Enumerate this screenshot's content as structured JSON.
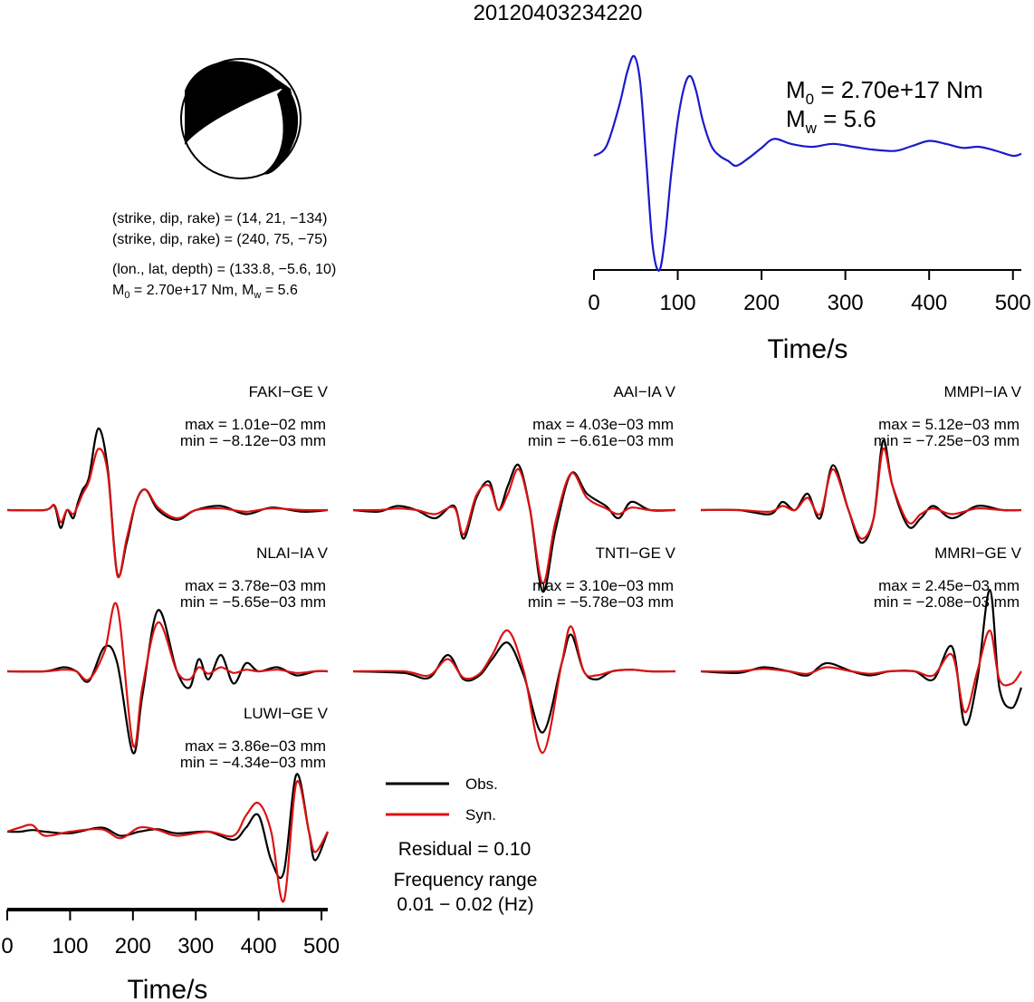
{
  "title": "20120403234220",
  "mechanism": {
    "line1": "(strike, dip, rake) = (14, 21, −134)",
    "line2": "(strike, dip, rake) = (240, 75, −75)",
    "line3": "(lon., lat, depth) = (133.8, −5.6, 10)",
    "m0_prefix": "M",
    "m0_sub": "0",
    "m0_text": " = 2.70e+17 Nm, M",
    "mw_sub": "w",
    "mw_text": " = 5.6"
  },
  "stf": {
    "m0_label": "M",
    "m0_sub": "0",
    "m0_value": " = 2.70e+17 Nm",
    "mw_label": "M",
    "mw_sub": "w",
    "mw_value": " = 5.6",
    "xlabel": "Time/s",
    "ticks": [
      "0",
      "100",
      "200",
      "300",
      "400",
      "500"
    ]
  },
  "waveform_axis": {
    "xlabel": "Time/s",
    "ticks": [
      "0",
      "100",
      "200",
      "300",
      "400",
      "500"
    ]
  },
  "legend": {
    "obs": "Obs.",
    "syn": "Syn.",
    "residual": "Residual = 0.10",
    "freq_label": "Frequency range",
    "freq_value": "0.01 − 0.02 (Hz)",
    "obs_color": "#000000",
    "syn_color": "#dd1111"
  },
  "stations": [
    {
      "name": "FAKI−GE V",
      "max": "max = 1.01e−02 mm",
      "min": "min = −8.12e−03 mm"
    },
    {
      "name": "AAI−IA V",
      "max": "max = 4.03e−03 mm",
      "min": "min = −6.61e−03 mm"
    },
    {
      "name": "MMPI−IA V",
      "max": "max = 5.12e−03 mm",
      "min": "min = −7.25e−03 mm"
    },
    {
      "name": "NLAI−IA V",
      "max": "max = 3.78e−03 mm",
      "min": "min = −5.65e−03 mm"
    },
    {
      "name": "TNTI−GE V",
      "max": "max = 3.10e−03 mm",
      "min": "min = −5.78e−03 mm"
    },
    {
      "name": "MMRI−GE V",
      "max": "max = 2.45e−03 mm",
      "min": "min = −2.08e−03 mm"
    },
    {
      "name": "LUWI−GE V",
      "max": "max = 3.86e−03 mm",
      "min": "min = −4.34e−03 mm"
    }
  ],
  "chart_data": [
    {
      "type": "line",
      "title": "",
      "xlabel": "Time/s",
      "ylabel": "",
      "xlim": [
        0,
        510
      ],
      "series": [
        {
          "color": "#1a1acc",
          "x": [
            0,
            15,
            30,
            40,
            48,
            55,
            62,
            70,
            78,
            85,
            92,
            100,
            108,
            115,
            122,
            130,
            140,
            150,
            160,
            170,
            185,
            200,
            215,
            235,
            260,
            285,
            310,
            335,
            360,
            380,
            400,
            420,
            440,
            460,
            480,
            500,
            510
          ],
          "y": [
            0.0,
            0.1,
            0.5,
            0.85,
            1.0,
            0.75,
            0.0,
            -0.9,
            -1.15,
            -0.8,
            -0.2,
            0.35,
            0.7,
            0.8,
            0.65,
            0.35,
            0.1,
            0.0,
            -0.05,
            -0.1,
            -0.02,
            0.08,
            0.17,
            0.12,
            0.09,
            0.12,
            0.09,
            0.06,
            0.05,
            0.1,
            0.15,
            0.12,
            0.08,
            0.09,
            0.05,
            0.0,
            0.02
          ]
        }
      ]
    },
    {
      "type": "line",
      "title": "FAKI−GE V",
      "xlim": [
        0,
        510
      ],
      "series": [
        {
          "name": "Obs.",
          "x": [
            0,
            60,
            75,
            85,
            95,
            105,
            112,
            120,
            130,
            145,
            160,
            175,
            190,
            205,
            220,
            240,
            270,
            300,
            340,
            380,
            420,
            470,
            510
          ],
          "y": [
            0.0,
            0.0,
            0.05,
            -0.22,
            0.0,
            -0.1,
            0.08,
            0.25,
            0.4,
            1.0,
            0.5,
            -0.78,
            -0.4,
            0.1,
            0.25,
            0.0,
            -0.12,
            0.0,
            0.05,
            -0.05,
            0.03,
            -0.02,
            0.0
          ]
        },
        {
          "name": "Syn.",
          "x": [
            0,
            60,
            75,
            85,
            95,
            105,
            112,
            120,
            130,
            145,
            160,
            175,
            190,
            205,
            220,
            240,
            270,
            300,
            340,
            380,
            420,
            470,
            510
          ],
          "y": [
            0.0,
            0.0,
            0.06,
            -0.15,
            0.0,
            -0.05,
            0.05,
            0.2,
            0.35,
            0.75,
            0.45,
            -0.8,
            -0.35,
            0.1,
            0.25,
            0.03,
            -0.1,
            0.0,
            0.02,
            -0.02,
            0.02,
            0.0,
            0.0
          ]
        }
      ]
    },
    {
      "type": "line",
      "title": "AAI−IA V",
      "xlim": [
        0,
        510
      ],
      "series": [
        {
          "name": "Obs.",
          "x": [
            0,
            40,
            70,
            100,
            130,
            160,
            175,
            195,
            215,
            230,
            245,
            262,
            280,
            300,
            320,
            345,
            370,
            400,
            420,
            440,
            470,
            510
          ],
          "y": [
            0.0,
            -0.02,
            0.05,
            0.0,
            -0.1,
            0.05,
            -0.35,
            0.15,
            0.35,
            0.0,
            0.3,
            0.55,
            0.0,
            -1.0,
            -0.25,
            0.45,
            0.2,
            0.05,
            -0.1,
            0.1,
            0.0,
            0.0
          ]
        },
        {
          "name": "Syn.",
          "x": [
            0,
            40,
            70,
            100,
            130,
            160,
            175,
            195,
            215,
            230,
            245,
            262,
            280,
            300,
            320,
            345,
            370,
            400,
            420,
            440,
            470,
            510
          ],
          "y": [
            0.0,
            0.0,
            0.02,
            0.0,
            -0.05,
            0.03,
            -0.3,
            0.18,
            0.3,
            0.0,
            0.2,
            0.5,
            0.0,
            -0.9,
            -0.15,
            0.45,
            0.15,
            0.02,
            -0.05,
            0.03,
            0.0,
            0.0
          ]
        }
      ]
    },
    {
      "type": "line",
      "title": "MMPI−IA V",
      "xlim": [
        0,
        510
      ],
      "series": [
        {
          "name": "Obs.",
          "x": [
            0,
            60,
            110,
            130,
            150,
            170,
            190,
            210,
            235,
            255,
            275,
            290,
            305,
            330,
            350,
            370,
            400,
            440,
            480,
            510
          ],
          "y": [
            0.0,
            0.0,
            -0.05,
            0.1,
            0.0,
            0.2,
            -0.1,
            0.55,
            0.0,
            -0.4,
            -0.1,
            0.85,
            0.3,
            -0.2,
            -0.1,
            0.05,
            -0.1,
            0.05,
            0.0,
            0.0
          ]
        },
        {
          "name": "Syn.",
          "x": [
            0,
            60,
            110,
            130,
            150,
            170,
            190,
            210,
            235,
            255,
            275,
            290,
            305,
            330,
            350,
            370,
            400,
            440,
            480,
            510
          ],
          "y": [
            0.0,
            0.0,
            -0.02,
            0.05,
            0.0,
            0.15,
            -0.05,
            0.5,
            0.0,
            -0.35,
            -0.1,
            0.75,
            0.3,
            -0.15,
            -0.05,
            0.02,
            -0.05,
            0.02,
            0.0,
            0.0
          ]
        }
      ]
    },
    {
      "type": "line",
      "title": "NLAI−IA V",
      "xlim": [
        0,
        510
      ],
      "series": [
        {
          "name": "Obs.",
          "x": [
            0,
            60,
            90,
            110,
            130,
            155,
            175,
            200,
            215,
            240,
            270,
            290,
            305,
            320,
            340,
            360,
            380,
            400,
            430,
            460,
            490,
            510
          ],
          "y": [
            0.0,
            0.0,
            0.05,
            0.0,
            -0.12,
            0.3,
            0.1,
            -1.0,
            -0.3,
            0.75,
            0.0,
            -0.2,
            0.15,
            -0.1,
            0.2,
            -0.15,
            0.1,
            0.0,
            0.05,
            -0.05,
            0.0,
            0.0
          ]
        },
        {
          "name": "Syn.",
          "x": [
            0,
            60,
            90,
            110,
            130,
            155,
            175,
            200,
            215,
            240,
            270,
            290,
            305,
            320,
            340,
            360,
            380,
            400,
            430,
            460,
            490,
            510
          ],
          "y": [
            0.0,
            0.0,
            0.02,
            0.0,
            -0.1,
            0.25,
            0.8,
            -0.9,
            -0.2,
            0.6,
            0.0,
            -0.1,
            0.05,
            -0.03,
            0.05,
            -0.02,
            0.02,
            0.0,
            0.02,
            -0.02,
            0.0,
            0.0
          ]
        }
      ]
    },
    {
      "type": "line",
      "title": "TNTI−GE V",
      "xlim": [
        0,
        510
      ],
      "series": [
        {
          "name": "Obs.",
          "x": [
            0,
            80,
            120,
            150,
            175,
            200,
            220,
            245,
            270,
            300,
            330,
            345,
            365,
            385,
            410,
            440,
            470,
            510
          ],
          "y": [
            0.0,
            -0.02,
            -0.08,
            0.2,
            -0.1,
            -0.05,
            0.15,
            0.35,
            -0.05,
            -0.75,
            0.1,
            0.45,
            0.0,
            -0.1,
            0.0,
            0.02,
            0.0,
            0.0
          ]
        },
        {
          "name": "Syn.",
          "x": [
            0,
            80,
            120,
            150,
            175,
            200,
            220,
            245,
            270,
            300,
            330,
            345,
            365,
            385,
            410,
            440,
            470,
            510
          ],
          "y": [
            0.0,
            0.0,
            -0.05,
            0.15,
            -0.08,
            -0.03,
            0.2,
            0.5,
            0.0,
            -1.0,
            0.1,
            0.55,
            0.0,
            -0.05,
            0.0,
            0.02,
            0.0,
            0.0
          ]
        }
      ]
    },
    {
      "type": "line",
      "title": "MMRI−GE V",
      "xlim": [
        0,
        510
      ],
      "series": [
        {
          "name": "Obs.",
          "x": [
            0,
            60,
            100,
            140,
            170,
            200,
            240,
            270,
            300,
            340,
            370,
            400,
            420,
            440,
            460,
            475,
            495,
            510
          ],
          "y": [
            0.0,
            -0.02,
            0.05,
            0.0,
            -0.05,
            0.1,
            0.0,
            -0.05,
            0.0,
            0.0,
            -0.1,
            0.3,
            -0.65,
            -0.1,
            1.0,
            -0.2,
            -0.45,
            -0.2
          ]
        },
        {
          "name": "Syn.",
          "x": [
            0,
            60,
            100,
            140,
            170,
            200,
            240,
            270,
            300,
            340,
            370,
            400,
            420,
            440,
            460,
            475,
            495,
            510
          ],
          "y": [
            0.0,
            0.0,
            0.03,
            0.0,
            -0.03,
            0.05,
            0.0,
            -0.03,
            0.0,
            0.0,
            -0.05,
            0.2,
            -0.5,
            0.0,
            0.5,
            -0.1,
            -0.15,
            0.0
          ]
        }
      ]
    },
    {
      "type": "line",
      "title": "LUWI−GE V",
      "xlim": [
        0,
        510
      ],
      "series": [
        {
          "name": "Obs.",
          "x": [
            0,
            20,
            40,
            60,
            100,
            150,
            180,
            210,
            240,
            270,
            320,
            360,
            380,
            400,
            420,
            440,
            460,
            480,
            490,
            510
          ],
          "y": [
            0.0,
            0.0,
            0.02,
            0.0,
            -0.02,
            0.05,
            -0.05,
            0.0,
            0.03,
            -0.02,
            0.0,
            -0.1,
            0.05,
            0.2,
            -0.35,
            -0.5,
            0.7,
            0.0,
            -0.35,
            0.0
          ]
        },
        {
          "name": "Syn.",
          "x": [
            0,
            20,
            40,
            60,
            100,
            150,
            180,
            210,
            240,
            270,
            320,
            360,
            380,
            400,
            420,
            440,
            460,
            480,
            490,
            510
          ],
          "y": [
            0.0,
            0.05,
            0.08,
            -0.05,
            0.0,
            0.03,
            -0.08,
            0.05,
            0.02,
            -0.05,
            0.0,
            -0.05,
            0.2,
            0.35,
            0.0,
            -0.85,
            0.6,
            0.0,
            -0.25,
            0.0
          ]
        }
      ]
    }
  ]
}
